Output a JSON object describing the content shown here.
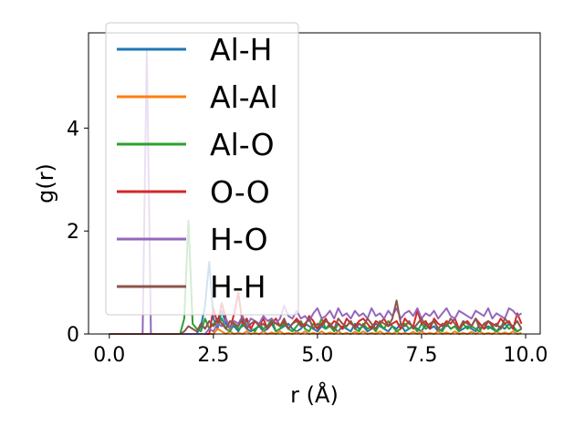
{
  "chart_data": {
    "type": "line",
    "title": "",
    "xlabel": "r (Å)",
    "ylabel": "g(r)",
    "xlim": [
      -0.5,
      10.35
    ],
    "ylim": [
      0,
      5.85
    ],
    "xticks": [
      {
        "value": 0.0,
        "label": "0.0"
      },
      {
        "value": 2.5,
        "label": "2.5"
      },
      {
        "value": 5.0,
        "label": "5.0"
      },
      {
        "value": 7.5,
        "label": "7.5"
      },
      {
        "value": 10.0,
        "label": "10.0"
      }
    ],
    "yticks": [
      {
        "value": 0,
        "label": "0"
      },
      {
        "value": 2,
        "label": "2"
      },
      {
        "value": 4,
        "label": "4"
      }
    ],
    "grid": false,
    "legend_position": "top-left",
    "x": [
      0.0,
      0.1,
      0.2,
      0.3,
      0.4,
      0.5,
      0.6,
      0.7,
      0.8,
      0.9,
      1.0,
      1.1,
      1.2,
      1.3,
      1.4,
      1.5,
      1.6,
      1.7,
      1.8,
      1.9,
      2.0,
      2.1,
      2.2,
      2.3,
      2.4,
      2.5,
      2.6,
      2.7,
      2.8,
      2.9,
      3.0,
      3.1,
      3.2,
      3.3,
      3.4,
      3.5,
      3.6,
      3.7,
      3.8,
      3.9,
      4.0,
      4.1,
      4.2,
      4.3,
      4.4,
      4.5,
      4.6,
      4.7,
      4.8,
      4.9,
      5.0,
      5.1,
      5.2,
      5.3,
      5.4,
      5.5,
      5.6,
      5.7,
      5.8,
      5.9,
      6.0,
      6.1,
      6.2,
      6.3,
      6.4,
      6.5,
      6.6,
      6.7,
      6.8,
      6.9,
      7.0,
      7.1,
      7.2,
      7.3,
      7.4,
      7.5,
      7.6,
      7.7,
      7.8,
      7.9,
      8.0,
      8.1,
      8.2,
      8.3,
      8.4,
      8.5,
      8.6,
      8.7,
      8.8,
      8.9,
      9.0,
      9.1,
      9.2,
      9.3,
      9.4,
      9.5,
      9.6,
      9.7,
      9.8,
      9.9
    ],
    "series": [
      {
        "name": "Al-H",
        "color": "#1f77b4",
        "values": [
          0,
          0,
          0,
          0,
          0,
          0,
          0,
          0,
          0,
          0,
          0,
          0,
          0,
          0,
          0,
          0,
          0,
          0,
          0,
          0,
          0,
          0,
          0.15,
          0.55,
          1.4,
          0.3,
          0.1,
          0.45,
          0.2,
          0.1,
          0.15,
          0.05,
          0.2,
          0.1,
          0.05,
          0.1,
          0.15,
          0.05,
          0.1,
          0.2,
          0.05,
          0.1,
          0.15,
          0.2,
          0.1,
          0.05,
          0.1,
          0.2,
          0.15,
          0.1,
          0.05,
          0.15,
          0.1,
          0.2,
          0.1,
          0.05,
          0.15,
          0.1,
          0.05,
          0.2,
          0.1,
          0.15,
          0.05,
          0.1,
          0.2,
          0.15,
          0.1,
          0.05,
          0.15,
          0.1,
          0.2,
          0.05,
          0.1,
          0.15,
          0.1,
          0.05,
          0.2,
          0.1,
          0.15,
          0.05,
          0.1,
          0.2,
          0.1,
          0.15,
          0.05,
          0.1,
          0.15,
          0.1,
          0.05,
          0.2,
          0.1,
          0.15,
          0.1,
          0.05,
          0.15,
          0.1,
          0.2,
          0.1,
          0.05,
          0.1
        ]
      },
      {
        "name": "Al-Al",
        "color": "#ff7f0e",
        "values": [
          0,
          0,
          0,
          0,
          0,
          0,
          0,
          0,
          0,
          0,
          0,
          0,
          0,
          0,
          0,
          0,
          0,
          0,
          0,
          0,
          0,
          0,
          0,
          0,
          0,
          0,
          0.1,
          0.05,
          0,
          0.05,
          0,
          0.02,
          0,
          0.05,
          0,
          0.02,
          0,
          0.05,
          0,
          0.03,
          0,
          0.05,
          0,
          0.02,
          0,
          0.04,
          0,
          0.05,
          0,
          0.02,
          0,
          0.05,
          0,
          0.03,
          0,
          0.05,
          0,
          0.02,
          0,
          0.04,
          0,
          0.05,
          0,
          0.02,
          0,
          0.05,
          0,
          0.03,
          0,
          0.05,
          0,
          0.02,
          0,
          0.04,
          0,
          0.05,
          0,
          0.02,
          0,
          0.05,
          0,
          0.03,
          0,
          0.05,
          0,
          0.02,
          0,
          0.04,
          0,
          0.05,
          0,
          0.02,
          0,
          0.05,
          0,
          0.03,
          0,
          0.05,
          0,
          0.02
        ]
      },
      {
        "name": "Al-O",
        "color": "#2ca02c",
        "values": [
          0,
          0,
          0,
          0,
          0,
          0,
          0,
          0,
          0,
          0,
          0,
          0,
          0,
          0,
          0,
          0,
          0,
          0,
          0.3,
          2.2,
          0.2,
          0.1,
          0.05,
          0.3,
          0.1,
          0.2,
          0.15,
          0.3,
          0.1,
          0.05,
          0.2,
          0.1,
          0.15,
          0.25,
          0.1,
          0.05,
          0.2,
          0.1,
          0.15,
          0.3,
          0.05,
          0.1,
          0.2,
          0.1,
          0.05,
          0.15,
          0.25,
          0.1,
          0.05,
          0.2,
          0.1,
          0.3,
          0.1,
          0.15,
          0.05,
          0.2,
          0.1,
          0.15,
          0.25,
          0.1,
          0.05,
          0.2,
          0.1,
          0.15,
          0.05,
          0.2,
          0.1,
          0.25,
          0.15,
          0.05,
          0.1,
          0.2,
          0.1,
          0.15,
          0.05,
          0.2,
          0.1,
          0.15,
          0.25,
          0.1,
          0.05,
          0.2,
          0.1,
          0.15,
          0.05,
          0.2,
          0.1,
          0.15,
          0.1,
          0.05,
          0.2,
          0.1,
          0.15,
          0.05,
          0.1,
          0.2,
          0.1,
          0.15,
          0.05,
          0.1
        ]
      },
      {
        "name": "O-O",
        "color": "#d62728",
        "values": [
          0,
          0,
          0,
          0,
          0,
          0,
          0,
          0,
          0,
          0,
          0,
          0,
          0,
          0,
          0,
          0,
          0,
          0,
          0,
          0,
          0,
          0,
          0,
          0,
          0,
          0.5,
          0.2,
          0.6,
          0.3,
          0.1,
          0.4,
          0.8,
          0.2,
          0.3,
          0.1,
          0.25,
          0.15,
          0.3,
          0.1,
          0.2,
          0.3,
          0.15,
          0.25,
          0.1,
          0.2,
          0.3,
          0.2,
          0.15,
          0.35,
          0.25,
          0.1,
          0.2,
          0.3,
          0.15,
          0.25,
          0.2,
          0.1,
          0.3,
          0.2,
          0.15,
          0.25,
          0.3,
          0.2,
          0.1,
          0.25,
          0.2,
          0.3,
          0.15,
          0.2,
          0.25,
          0.1,
          0.3,
          0.2,
          0.15,
          0.45,
          0.2,
          0.25,
          0.1,
          0.3,
          0.2,
          0.15,
          0.25,
          0.2,
          0.3,
          0.1,
          0.2,
          0.25,
          0.15,
          0.3,
          0.2,
          0.1,
          0.25,
          0.2,
          0.15,
          0.3,
          0.2,
          0.25,
          0.1,
          0.4,
          0.2
        ]
      },
      {
        "name": "H-O",
        "color": "#9467bd",
        "values": [
          0,
          0,
          0,
          0,
          0,
          0,
          0,
          0,
          0,
          5.55,
          0,
          0,
          0,
          0,
          0,
          0,
          0,
          0,
          0,
          0,
          0,
          0,
          0,
          0,
          0.1,
          0.05,
          0.2,
          0.15,
          0.3,
          0.1,
          0.25,
          0.2,
          0.35,
          0.15,
          0.3,
          0.25,
          0.2,
          0.35,
          0.25,
          0.3,
          0.2,
          0.3,
          0.55,
          0.35,
          0.3,
          0.45,
          0.3,
          0.35,
          0.25,
          0.4,
          0.5,
          0.3,
          0.35,
          0.45,
          0.3,
          0.5,
          0.35,
          0.4,
          0.3,
          0.45,
          0.35,
          0.4,
          0.3,
          0.5,
          0.35,
          0.4,
          0.3,
          0.45,
          0.35,
          0.5,
          0.3,
          0.4,
          0.45,
          0.35,
          0.5,
          0.3,
          0.4,
          0.35,
          0.45,
          0.3,
          0.4,
          0.5,
          0.35,
          0.3,
          0.45,
          0.4,
          0.35,
          0.3,
          0.45,
          0.4,
          0.35,
          0.5,
          0.3,
          0.4,
          0.35,
          0.3,
          0.5,
          0.45,
          0.35,
          0.4
        ]
      },
      {
        "name": "H-H",
        "color": "#8c564b",
        "values": [
          0,
          0,
          0,
          0,
          0,
          0,
          0,
          0,
          0,
          0,
          0,
          0,
          0,
          0,
          0,
          0,
          0,
          0,
          0.05,
          0.15,
          0.1,
          0.05,
          0.2,
          0.1,
          0.25,
          0.15,
          0.3,
          0.2,
          0.1,
          0.25,
          0.2,
          0.15,
          0.3,
          0.1,
          0.2,
          0.25,
          0.15,
          0.2,
          0.1,
          0.25,
          0.2,
          0.15,
          0.3,
          0.1,
          0.2,
          0.25,
          0.15,
          0.2,
          0.3,
          0.1,
          0.2,
          0.15,
          0.25,
          0.2,
          0.1,
          0.3,
          0.2,
          0.15,
          0.25,
          0.1,
          0.2,
          0.15,
          0.3,
          0.2,
          0.1,
          0.25,
          0.2,
          0.15,
          0.3,
          0.65,
          0.2,
          0.15,
          0.25,
          0.1,
          0.2,
          0.3,
          0.15,
          0.2,
          0.25,
          0.1,
          0.2,
          0.15,
          0.3,
          0.2,
          0.1,
          0.25,
          0.2,
          0.15,
          0.3,
          0.1,
          0.2,
          0.25,
          0.15,
          0.2,
          0.1,
          0.3,
          0.2,
          0.15,
          0.25,
          0.1
        ]
      }
    ]
  }
}
